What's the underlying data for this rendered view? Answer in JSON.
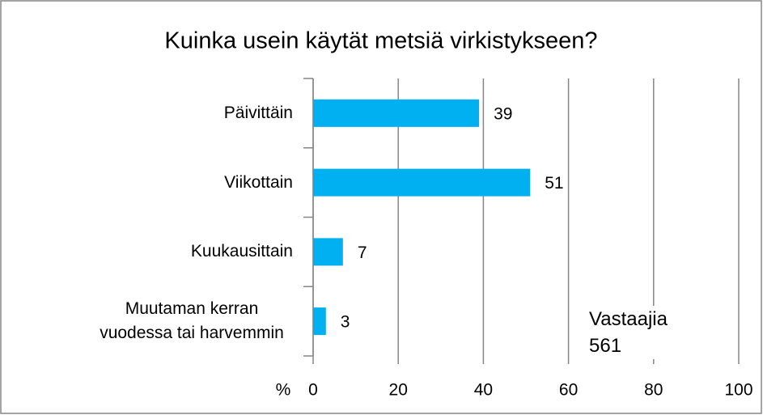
{
  "chart_data": {
    "type": "barh",
    "title": "Kuinka usein käytät metsiä virkistykseen?",
    "categories": [
      "Päivittäin",
      "Viikottain",
      "Kuukausittain",
      "Muutaman kerran vuodessa tai harvemmin"
    ],
    "values": [
      39,
      51,
      7,
      3
    ],
    "color": "#00b0f0",
    "xlabel": "%",
    "xlim": [
      0,
      100
    ],
    "xticks": [
      0,
      20,
      40,
      60,
      80,
      100
    ],
    "grid": true,
    "annotation": "Vastaajia 561"
  }
}
